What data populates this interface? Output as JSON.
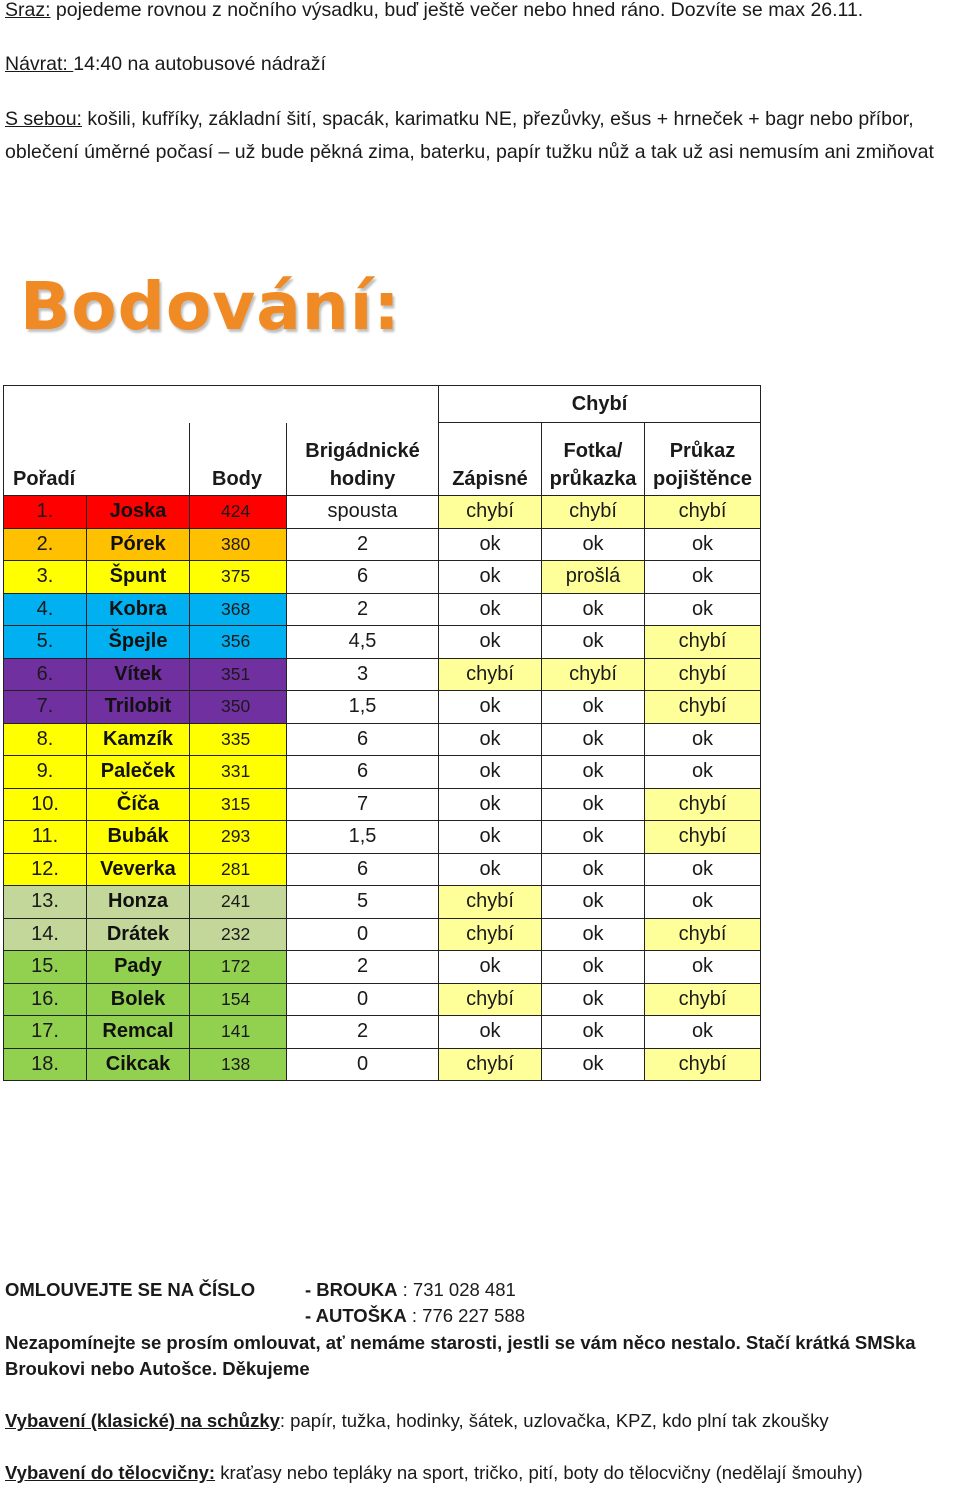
{
  "intro": {
    "sraz_label": "Sraz:",
    "sraz_text": " pojedeme rovnou z nočního výsadku, buď ještě večer nebo hned ráno. Dozvíte se max 26.11.",
    "navrat_label": "Návrat: ",
    "navrat_text": " 14:40 na autobusové nádraží",
    "sebou_label": "S sebou:",
    "sebou_text": " košili, kufříky, základní šití, spacák, karimatku NE, přezůvky, ešus + hrneček + bagr nebo příbor, oblečení úměrné počasí – už bude pěkná zima, baterku, papír tužku nůž a tak už asi nemusím ani zmiňovat"
  },
  "heading": "Bodování:",
  "table": {
    "group_header": "Chybí",
    "columns": {
      "rank": "Pořadí",
      "points": "Body",
      "hours_1": "Brigádnické",
      "hours_2": "hodiny",
      "notebook": "Zápisné",
      "photo_1": "Fotka/",
      "photo_2": "průkazka",
      "insurance_1": "Průkaz",
      "insurance_2": "pojištěnce"
    },
    "colors": {
      "red": "#ff0000",
      "orange": "#ffc000",
      "yellow": "#ffff00",
      "blue": "#00b0f0",
      "purple": "#7030a0",
      "olive": "#c4d79b",
      "green": "#92d050",
      "missing": "#ffff99"
    },
    "rows": [
      {
        "rank": "1.",
        "name": "Joska",
        "points": "424",
        "hours": "spousta",
        "notebook": "chybí",
        "photo": "chybí",
        "insurance": "chybí",
        "color": "red"
      },
      {
        "rank": "2.",
        "name": "Pórek",
        "points": "380",
        "hours": "2",
        "notebook": "ok",
        "photo": "ok",
        "insurance": "ok",
        "color": "orange"
      },
      {
        "rank": "3.",
        "name": "Špunt",
        "points": "375",
        "hours": "6",
        "notebook": "ok",
        "photo": "prošlá",
        "insurance": "ok",
        "color": "yellow"
      },
      {
        "rank": "4.",
        "name": "Kobra",
        "points": "368",
        "hours": "2",
        "notebook": "ok",
        "photo": "ok",
        "insurance": "ok",
        "color": "blue"
      },
      {
        "rank": "5.",
        "name": "Špejle",
        "points": "356",
        "hours": "4,5",
        "notebook": "ok",
        "photo": "ok",
        "insurance": "chybí",
        "color": "blue"
      },
      {
        "rank": "6.",
        "name": "Vítek",
        "points": "351",
        "hours": "3",
        "notebook": "chybí",
        "photo": "chybí",
        "insurance": "chybí",
        "color": "purple"
      },
      {
        "rank": "7.",
        "name": "Trilobit",
        "points": "350",
        "hours": "1,5",
        "notebook": "ok",
        "photo": "ok",
        "insurance": "chybí",
        "color": "purple"
      },
      {
        "rank": "8.",
        "name": "Kamzík",
        "points": "335",
        "hours": "6",
        "notebook": "ok",
        "photo": "ok",
        "insurance": "ok",
        "color": "yellow"
      },
      {
        "rank": "9.",
        "name": "Paleček",
        "points": "331",
        "hours": "6",
        "notebook": "ok",
        "photo": "ok",
        "insurance": "ok",
        "color": "yellow"
      },
      {
        "rank": "10.",
        "name": "Číča",
        "points": "315",
        "hours": "7",
        "notebook": "ok",
        "photo": "ok",
        "insurance": "chybí",
        "color": "yellow"
      },
      {
        "rank": "11.",
        "name": "Bubák",
        "points": "293",
        "hours": "1,5",
        "notebook": "ok",
        "photo": "ok",
        "insurance": "chybí",
        "color": "yellow"
      },
      {
        "rank": "12.",
        "name": "Veverka",
        "points": "281",
        "hours": "6",
        "notebook": "ok",
        "photo": "ok",
        "insurance": "ok",
        "color": "yellow"
      },
      {
        "rank": "13.",
        "name": "Honza",
        "points": "241",
        "hours": "5",
        "notebook": "chybí",
        "photo": "ok",
        "insurance": "ok",
        "color": "olive"
      },
      {
        "rank": "14.",
        "name": "Drátek",
        "points": "232",
        "hours": "0",
        "notebook": "chybí",
        "photo": "ok",
        "insurance": "chybí",
        "color": "olive"
      },
      {
        "rank": "15.",
        "name": "Pady",
        "points": "172",
        "hours": "2",
        "notebook": "ok",
        "photo": "ok",
        "insurance": "ok",
        "color": "green"
      },
      {
        "rank": "16.",
        "name": "Bolek",
        "points": "154",
        "hours": "0",
        "notebook": "chybí",
        "photo": "ok",
        "insurance": "chybí",
        "color": "green"
      },
      {
        "rank": "17.",
        "name": "Remcal",
        "points": "141",
        "hours": "2",
        "notebook": "ok",
        "photo": "ok",
        "insurance": "ok",
        "color": "green"
      },
      {
        "rank": "18.",
        "name": "Cikcak",
        "points": "138",
        "hours": "0",
        "notebook": "chybí",
        "photo": "ok",
        "insurance": "chybí",
        "color": "green"
      }
    ]
  },
  "footer": {
    "apology_label": "OMLOUVEJTE SE NA ČÍSLO",
    "contact1_prefix": "- BROUKA",
    "contact1_number": " : 731 028 481",
    "contact2_prefix": "- AUTOŠKA",
    "contact2_number": " : 776 227 588",
    "reminder": "Nezapomínejte se prosím omlouvat, ať nemáme starosti, jestli se vám něco nestalo. Stačí krátká SMSka Broukovi nebo Autošce. Děkujeme",
    "equipment_label": "Vybavení (klasické) na schůzky",
    "equipment_text": ": papír, tužka, hodinky, šátek, uzlovačka, KPZ, kdo plní tak zkoušky",
    "gym_label": "Vybavení do tělocvičny:",
    "gym_text": " kraťasy nebo tepláky na sport, tričko, pití, boty do tělocvičny (nedělají šmouhy)"
  }
}
